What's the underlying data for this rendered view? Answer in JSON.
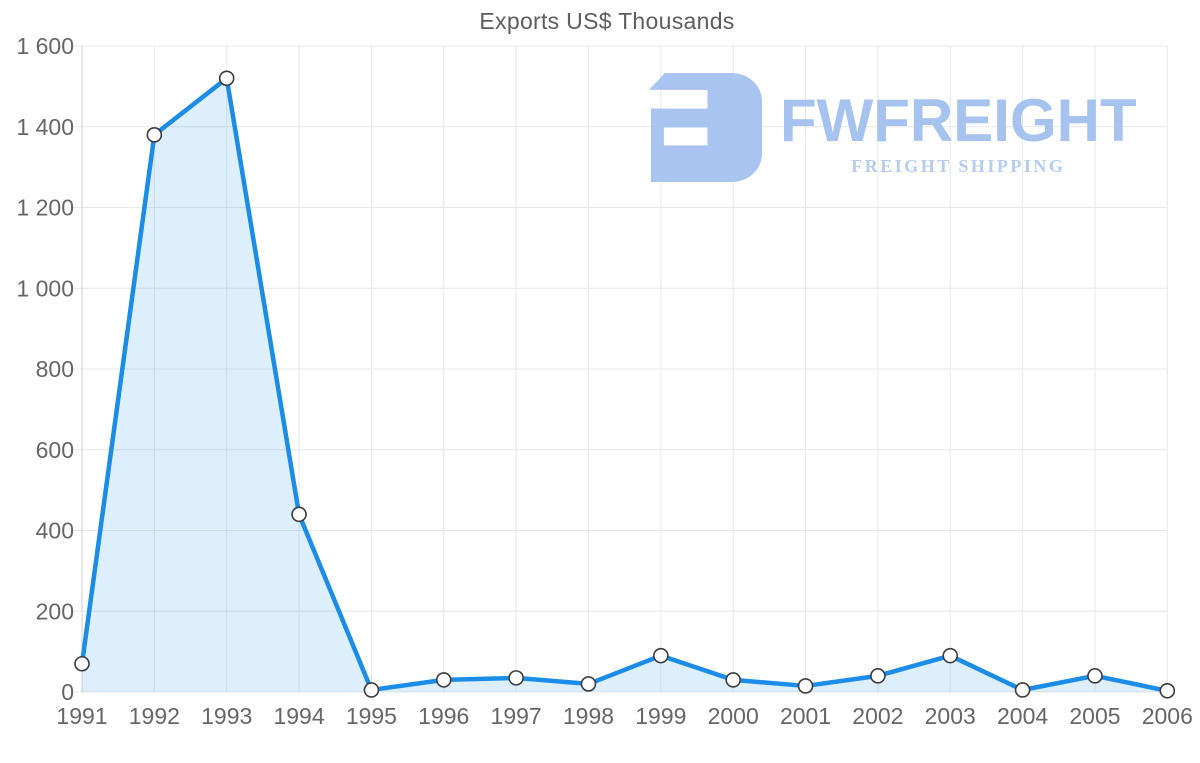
{
  "title": "Exports US$ Thousands",
  "logo": {
    "name": "FWFREIGHT",
    "subtitle": "FREIGHT SHIPPING",
    "color": "#a6c2ee",
    "subtitle_color": "#b5cbf1"
  },
  "chart_data": {
    "type": "area",
    "title": "Exports US$ Thousands",
    "xlabel": "",
    "ylabel": "",
    "categories": [
      "1991",
      "1992",
      "1993",
      "1994",
      "1995",
      "1996",
      "1997",
      "1998",
      "1999",
      "2000",
      "2001",
      "2002",
      "2003",
      "2004",
      "2005",
      "2006"
    ],
    "series": [
      {
        "name": "Exports US$ Thousands",
        "values": [
          70,
          1380,
          1520,
          440,
          5,
          30,
          35,
          20,
          90,
          30,
          15,
          40,
          90,
          5,
          40,
          3
        ]
      }
    ],
    "ylim": [
      0,
      1600
    ],
    "ytick_interval": 200,
    "ytick_labels": [
      "0",
      "200",
      "400",
      "600",
      "800",
      "1 000",
      "1 200",
      "1 400",
      "1 600"
    ],
    "grid": true,
    "legend_position": "none",
    "colors": {
      "line": "#1b8ce8",
      "area_fill": "rgba(27,140,232,0.15)",
      "marker_fill": "#ffffff",
      "marker_stroke": "#3c3c3c",
      "gridline": "#e8e8e8",
      "axis_line": "#cfcfcf",
      "tick_label": "#666666",
      "title_color": "#5e5e5e"
    }
  }
}
